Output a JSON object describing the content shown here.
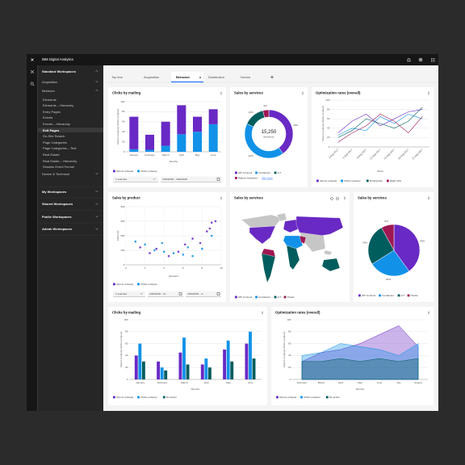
{
  "header": {
    "brand": "IBM Digital Analytics"
  },
  "sidebar": {
    "sections": [
      {
        "title": "Standard Workspaces",
        "groups": [
          {
            "label": "Acquisition"
          },
          {
            "label": "Behavior",
            "active": 5,
            "items": [
              "Elements",
              "Elements – Hierarchy",
              "Entry Pages",
              "Events",
              "Events – Hierarchy",
              "Exit Pages",
              "On-Site Search",
              "Page Categories",
              "Page Categories – Test",
              "Real Estate",
              "Real Estate – Hierarchy",
              "Session Event Funnel"
            ]
          },
          {
            "label": "Device & Technical"
          }
        ]
      },
      {
        "title": "My Workspaces"
      },
      {
        "title": "Shared Workspaces"
      },
      {
        "title": "Public Workspaces"
      },
      {
        "title": "Admin Workspaces"
      }
    ]
  },
  "tabs": {
    "items": [
      "Top line",
      "Acquisition",
      "Behavior",
      "Distribution",
      "Device"
    ],
    "active": 2
  },
  "cards": [
    {
      "title": "Clicks by mailing",
      "chart": {
        "type": "stacked_bar",
        "ylabel": "Opens (unique), Clicks (unique)",
        "xlabel": "Months",
        "categories": [
          "January",
          "February",
          "March",
          "April",
          "May",
          "June"
        ],
        "ylim": [
          0,
          100
        ],
        "yticks": [
          0,
          20,
          40,
          60,
          80,
          100
        ],
        "series": [
          {
            "name": "Opens (unique)",
            "color": "#6929c4",
            "values": [
              65,
              30,
              48,
              58,
              30,
              30
            ]
          },
          {
            "name": "Clicks (unique)",
            "color": "#1192e8",
            "values": [
              5,
              4,
              12,
              35,
              40,
              55
            ]
          }
        ]
      },
      "controls": {
        "select": "1 selected",
        "dates": [
          "4/16/2018 – 4/22/2018"
        ]
      }
    },
    {
      "title": "Sales by services",
      "chart": {
        "type": "donut",
        "categories": [
          "API Connect",
          "Containers",
          "IoT",
          "Watson Assistant"
        ],
        "values": [
          40,
          42,
          14,
          4
        ],
        "value_labels": [
          "40%",
          "42%",
          "14%",
          "4%"
        ],
        "colors": [
          "#6929c4",
          "#1192e8",
          "#005d5d",
          "#9f1853"
        ],
        "center_value": "15,250",
        "center_label": "Browsers",
        "legend_link": "See more"
      }
    },
    {
      "title": "Optimization rates (overall)",
      "chart": {
        "type": "line",
        "ylabel": "Opens (unique), Clicks (unique)",
        "xlabel": "Week",
        "categories": [
          "3 Aug 2017",
          "6 Aug 2017",
          "9 Aug 2017",
          "12 Aug 2017",
          "15 Aug 2017",
          "18 Aug 2017",
          "21 Aug 2017"
        ],
        "ylim": [
          0,
          100
        ],
        "yticks": [
          0,
          20,
          40,
          60,
          80,
          100
        ],
        "series": [
          {
            "name": "Opens (unique)",
            "color": "#6929c4",
            "values": [
              30,
              55,
              70,
              45,
              60,
              75,
              80
            ]
          },
          {
            "name": "Clicks (unique)",
            "color": "#1192e8",
            "values": [
              25,
              40,
              35,
              65,
              50,
              70,
              60
            ]
          },
          {
            "name": "Doubleclick",
            "color": "#005d5d",
            "values": [
              20,
              35,
              60,
              50,
              40,
              55,
              85
            ]
          },
          {
            "name": "Right click",
            "color": "#9f1853",
            "values": [
              10,
              30,
              45,
              70,
              55,
              30,
              65
            ]
          }
        ]
      }
    },
    {
      "title": "Sales by product",
      "chart": {
        "type": "scatter",
        "ylabel": "Sales (K)",
        "xlabel": "Quarters",
        "xlim": [
          0,
          10
        ],
        "xticks": [
          0,
          2,
          4,
          6,
          8,
          10
        ],
        "ylim": [
          0,
          400
        ],
        "yticks": [
          0,
          100,
          200,
          300,
          400
        ],
        "series": [
          {
            "name": "Opens (unique)",
            "color": "#6929c4",
            "x": [
              1.5,
              2.5,
              3.2,
              4.5,
              5.5,
              6.2,
              7,
              7.8,
              8.5,
              9,
              9.4,
              8.8
            ],
            "values": [
              120,
              80,
              110,
              60,
              90,
              140,
              180,
              150,
              230,
              290,
              300,
              250
            ]
          },
          {
            "name": "Clicks (unique)",
            "color": "#1192e8",
            "x": [
              1,
              2,
              3,
              4,
              5,
              6,
              7,
              8,
              9,
              3.8,
              6.5
            ],
            "values": [
              160,
              140,
              100,
              90,
              80,
              70,
              60,
              110,
              200,
              150,
              120
            ]
          }
        ]
      },
      "controls": {
        "select": "1 selected",
        "dates": [
          "4/16/2018 – 4/...",
          "4/16/2018 – 4..."
        ]
      }
    },
    {
      "title": "Sales by services",
      "chart": {
        "type": "map",
        "series": [
          {
            "name": "API Connect",
            "color": "#6929c4"
          },
          {
            "name": "Containers",
            "color": "#1192e8"
          },
          {
            "name": "IoT",
            "color": "#005d5d"
          },
          {
            "name": "Oracle",
            "color": "#9f1853"
          }
        ]
      }
    },
    {
      "title": "Sales by services",
      "chart": {
        "type": "pie",
        "categories": [
          "API Connect",
          "Containers",
          "IoT",
          "Oracle"
        ],
        "values": [
          40,
          26,
          26,
          8
        ],
        "value_labels": [
          "40%",
          "26%",
          "26%",
          "8%"
        ],
        "colors": [
          "#6929c4",
          "#1192e8",
          "#005d5d",
          "#9f1853"
        ]
      }
    },
    {
      "title": "Clicks by mailing",
      "chart": {
        "type": "grouped_bar",
        "ylabel": "Opens (unique), Clicks (unique)",
        "xlabel": "Months",
        "categories": [
          "January",
          "February",
          "March",
          "April",
          "May",
          "June"
        ],
        "ylim": [
          0,
          100
        ],
        "yticks": [
          0,
          20,
          40,
          60,
          80,
          100
        ],
        "series": [
          {
            "name": "Opens (unique)",
            "color": "#6929c4",
            "values": [
              40,
              30,
              45,
              25,
              50,
              60
            ]
          },
          {
            "name": "Clicks (unique)",
            "color": "#1192e8",
            "values": [
              60,
              20,
              70,
              35,
              65,
              80
            ]
          },
          {
            "name": "No action",
            "color": "#005d5d",
            "values": [
              30,
              15,
              25,
              20,
              30,
              35
            ]
          }
        ]
      }
    },
    {
      "title": "Optimization rates (overall)",
      "chart": {
        "type": "area",
        "ylabel": "Opens (unique), Clicks (unique)",
        "xlabel": "Months",
        "categories": [
          "February",
          "March",
          "April",
          "May",
          "June",
          "July",
          "August"
        ],
        "ylim": [
          0,
          100
        ],
        "yticks": [
          0,
          20,
          40,
          60,
          80,
          100
        ],
        "series": [
          {
            "name": "Opens (unique)",
            "color": "#6929c4",
            "values": [
              30,
              45,
              50,
              60,
              75,
              90,
              55
            ]
          },
          {
            "name": "Clicks (unique)",
            "color": "#1192e8",
            "values": [
              40,
              45,
              60,
              55,
              50,
              40,
              60
            ]
          },
          {
            "name": "No action",
            "color": "#005d5d",
            "values": [
              30,
              30,
              35,
              30,
              35,
              30,
              35
            ]
          }
        ]
      }
    }
  ]
}
